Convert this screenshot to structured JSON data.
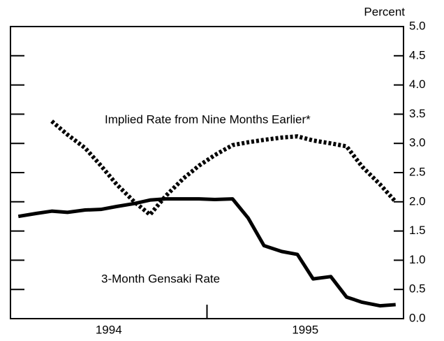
{
  "chart_data": {
    "type": "line",
    "y_axis_label": "Percent",
    "x": [
      1994.04,
      1994.13,
      1994.21,
      1994.29,
      1994.38,
      1994.46,
      1994.54,
      1994.63,
      1994.71,
      1994.79,
      1994.88,
      1994.96,
      1995.04,
      1995.13,
      1995.21,
      1995.29,
      1995.38,
      1995.46,
      1995.54,
      1995.63,
      1995.71,
      1995.79,
      1995.88,
      1995.96
    ],
    "xlim": [
      1994,
      1996
    ],
    "xticks": [
      {
        "value": 1994.5,
        "label": "1994"
      },
      {
        "value": 1995.5,
        "label": "1995"
      }
    ],
    "x_dividers": [
      1995
    ],
    "ylim": [
      0,
      5
    ],
    "yticks": [
      {
        "value": 0,
        "label": "0.0"
      },
      0.5,
      {
        "value": 1,
        "label": "1.0"
      },
      1.5,
      {
        "value": 2,
        "label": "2.0"
      },
      2.5,
      {
        "value": 3,
        "label": "3.0"
      },
      3.5,
      {
        "value": 4,
        "label": "4.0"
      },
      4.5,
      {
        "value": 5,
        "label": "5.0"
      }
    ],
    "series": [
      {
        "name": "3-Month Gensaki Rate",
        "color": "#000000",
        "style": "solid",
        "values": [
          1.75,
          1.8,
          1.84,
          1.82,
          1.86,
          1.87,
          1.92,
          1.97,
          2.03,
          2.05,
          2.05,
          2.05,
          2.04,
          2.05,
          1.72,
          1.25,
          1.15,
          1.1,
          0.68,
          0.72,
          0.37,
          0.28,
          0.22,
          0.24
        ]
      },
      {
        "name": "Implied Rate from Nine Months Earlier*",
        "color": "#000000",
        "style": "dotted",
        "values": [
          null,
          null,
          3.38,
          3.15,
          2.92,
          2.62,
          2.3,
          2.0,
          1.78,
          2.1,
          2.4,
          2.62,
          2.8,
          2.97,
          3.02,
          3.06,
          3.1,
          3.12,
          3.05,
          3.0,
          2.95,
          2.6,
          2.3,
          2.0
        ]
      }
    ]
  }
}
